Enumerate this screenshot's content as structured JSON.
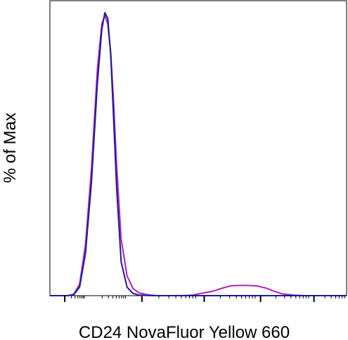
{
  "chart_data": {
    "type": "line",
    "title": "",
    "xlabel": "CD24 NovaFluor Yellow 660",
    "ylabel": "% of Max",
    "xlim": [
      0,
      100
    ],
    "ylim": [
      0,
      100
    ],
    "x_scale": "biexponential (tick labels not shown)",
    "grid": false,
    "legend": "none",
    "series": [
      {
        "color": "#1a1aa6",
        "x": [
          0,
          6,
          8,
          10,
          12,
          14,
          16,
          17.5,
          18.5,
          19.5,
          20.5,
          21.5,
          22.5,
          24,
          26,
          28,
          30,
          35,
          40,
          60,
          80,
          100
        ],
        "y": [
          0,
          0,
          0.3,
          3,
          15,
          40,
          75,
          94,
          100,
          98,
          85,
          62,
          38,
          12,
          3,
          0.8,
          0.2,
          0,
          0,
          0,
          0,
          0
        ]
      },
      {
        "color": "#b31fb3",
        "x": [
          0,
          6,
          8,
          10,
          12,
          14,
          16,
          17.5,
          18.5,
          19.5,
          20.5,
          21.5,
          22.5,
          24,
          26,
          28,
          30,
          33,
          36,
          40,
          44,
          48,
          52,
          55,
          58,
          61,
          64,
          67,
          70,
          73,
          75,
          78,
          82,
          86,
          90,
          95,
          100
        ],
        "y": [
          0,
          0,
          0.5,
          4,
          18,
          45,
          80,
          96,
          99,
          96,
          86,
          68,
          46,
          20,
          7,
          2.5,
          1,
          0.3,
          0,
          0,
          0,
          0.2,
          1,
          1.6,
          2.6,
          3.5,
          3.6,
          3.6,
          3.4,
          2.6,
          1.8,
          0.7,
          0.2,
          0,
          0,
          0,
          0
        ]
      }
    ]
  }
}
